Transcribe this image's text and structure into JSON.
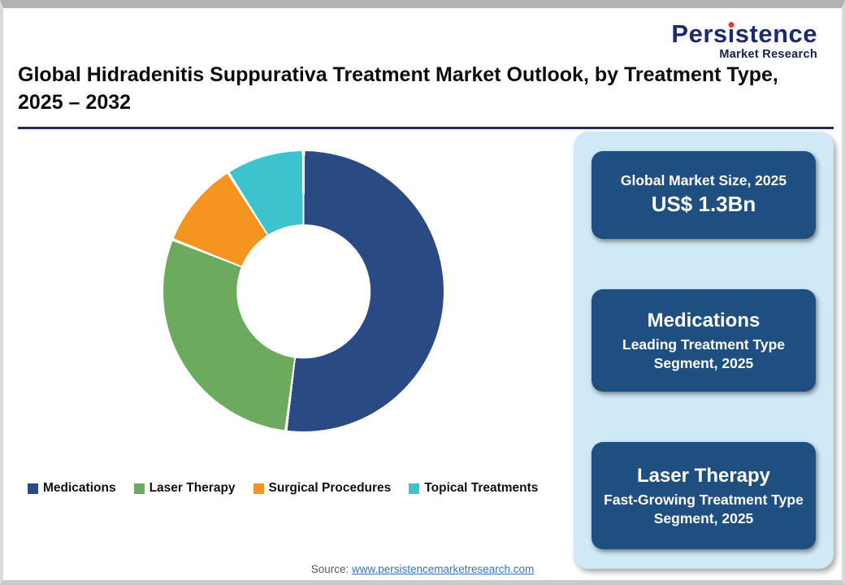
{
  "logo": {
    "brand_pre": "Pers",
    "brand_i": "ı",
    "brand_post": "stence",
    "brand_full": "Persistence",
    "tagline": "Market Research",
    "brand_color": "#1e2a6e",
    "dot_color": "#e03a36"
  },
  "header": {
    "title": "Global Hidradenitis Suppurativa Treatment Market Outlook, by Treatment Type, 2025 – 2032"
  },
  "chart_data": {
    "type": "pie",
    "subtype": "donut",
    "title": "Global Hidradenitis Suppurativa Treatment Market Outlook, by Treatment Type, 2025 – 2032",
    "categories": [
      "Medications",
      "Laser Therapy",
      "Surgical Procedures",
      "Topical Treatments"
    ],
    "values": [
      52,
      29,
      10,
      9
    ],
    "colors": [
      "#2a4a84",
      "#6cab5e",
      "#f5941f",
      "#3cc3cd"
    ],
    "start_angle_deg": 0,
    "direction": "clockwise",
    "hole_ratio": 0.48,
    "legend_position": "bottom"
  },
  "panel": {
    "bg_color": "#cfe9f7",
    "card_bg_color": "#1f4e80",
    "cards": [
      {
        "line1": "Global Market Size, 2025",
        "line2": "US$ 1.3Bn"
      },
      {
        "line1": "Medications",
        "line2": "Leading Treatment Type Segment, 2025"
      },
      {
        "line1": "Laser Therapy",
        "line2": "Fast-Growing Treatment Type Segment, 2025"
      }
    ]
  },
  "footer": {
    "source_label": "Source:",
    "source_link": "www.persistencemarketresearch.com"
  }
}
